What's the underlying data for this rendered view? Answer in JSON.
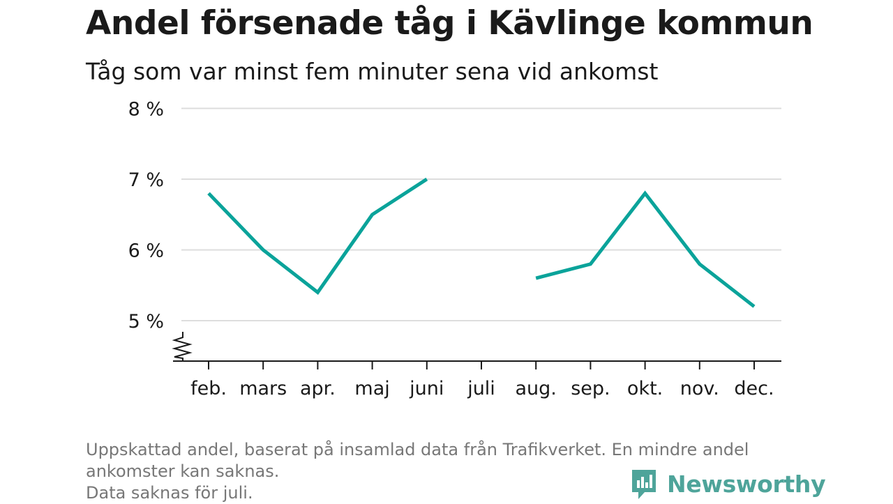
{
  "title": "Andel försenade tåg i Kävlinge kommun",
  "subtitle": "Tåg som var minst fem minuter sena vid ankomst",
  "colors": {
    "line": "#0aa39a",
    "grid": "#dddddd",
    "axis": "#1a1a1a",
    "text": "#1a1a1a",
    "footnote": "#777777",
    "brand": "#4ea49a"
  },
  "chart_data": {
    "type": "line",
    "categories": [
      "feb.",
      "mars",
      "apr.",
      "maj",
      "juni",
      "juli",
      "aug.",
      "sep.",
      "okt.",
      "nov.",
      "dec."
    ],
    "series": [
      {
        "values": [
          6.8,
          6.0,
          5.4,
          6.5,
          7.0,
          null,
          5.6,
          5.8,
          6.8,
          5.8,
          5.2
        ]
      }
    ],
    "y_ticks": [
      5,
      6,
      7,
      8
    ],
    "y_tick_labels": [
      "5 %",
      "6 %",
      "7 %",
      "8 %"
    ],
    "ylim": [
      4.45,
      8
    ],
    "y_axis_break": true,
    "grid": true,
    "xlabel": "",
    "ylabel": ""
  },
  "footnote": {
    "line1": "Uppskattad andel, baserat på insamlad data från Trafikverket. En mindre andel",
    "line2": "ankomster kan saknas.",
    "line3": "Data saknas för juli."
  },
  "brand": {
    "name": "Newsworthy",
    "icon": "newsworthy-logo-icon"
  }
}
